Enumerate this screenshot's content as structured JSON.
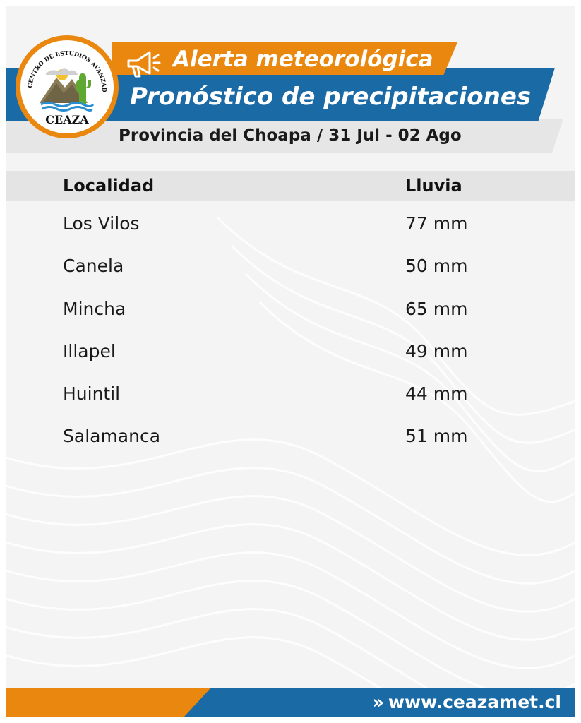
{
  "header": {
    "alert_label": "Alerta meteorológica",
    "title": "Pronóstico de precipitaciones",
    "subtitle": "Provincia del Choapa / 31 Jul - 02 Ago",
    "megaphone_icon": "megaphone-icon"
  },
  "logo": {
    "ring_text": "CENTRO DE ESTUDIOS AVANZADOS EN ZONAS ÁRIDAS",
    "name": "CEAZA"
  },
  "table": {
    "headers": {
      "locality": "Localidad",
      "rain": "Lluvia"
    },
    "rows": [
      {
        "locality": "Los Vilos",
        "rain": "77 mm"
      },
      {
        "locality": "Canela",
        "rain": "50 mm"
      },
      {
        "locality": "Mincha",
        "rain": "65 mm"
      },
      {
        "locality": "Illapel",
        "rain": "49 mm"
      },
      {
        "locality": "Huintil",
        "rain": "44 mm"
      },
      {
        "locality": "Salamanca",
        "rain": "51 mm"
      }
    ]
  },
  "footer": {
    "chevron": "»",
    "url": "www.ceazamet.cl"
  },
  "colors": {
    "orange": "#e9870f",
    "blue": "#1a6aa5",
    "grey_band": "#e6e6e6"
  }
}
